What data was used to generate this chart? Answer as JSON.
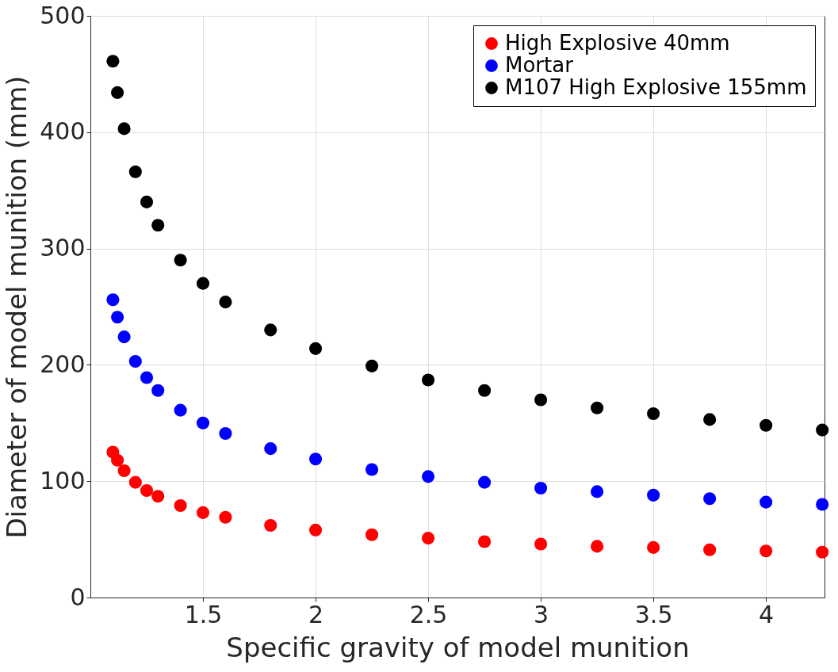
{
  "chart_data": {
    "type": "scatter",
    "xlabel": "Specific gravity of model munition",
    "ylabel": "Diameter of model munition (mm)",
    "x": [
      1.1,
      1.12,
      1.15,
      1.2,
      1.25,
      1.3,
      1.4,
      1.5,
      1.6,
      1.8,
      2,
      2.25,
      2.5,
      2.75,
      3,
      3.25,
      3.5,
      3.75,
      4,
      4.25
    ],
    "series": [
      {
        "name": "High Explosive 40mm",
        "color": "#ff0000",
        "values": [
          125,
          118,
          109,
          99,
          92,
          87,
          79,
          73,
          69,
          62,
          58,
          54,
          51,
          48,
          46,
          44,
          43,
          41,
          40,
          39
        ]
      },
      {
        "name": "Mortar",
        "color": "#0000ff",
        "values": [
          256,
          241,
          224,
          203,
          189,
          178,
          161,
          150,
          141,
          128,
          119,
          110,
          104,
          99,
          94,
          91,
          88,
          85,
          82,
          80
        ]
      },
      {
        "name": "M107 High Explosive 155mm",
        "color": "#000000",
        "values": [
          461,
          434,
          403,
          366,
          340,
          320,
          290,
          270,
          254,
          230,
          214,
          199,
          187,
          178,
          170,
          163,
          158,
          153,
          148,
          144
        ]
      }
    ],
    "xlim": [
      1,
      4.26
    ],
    "xticks": [
      1.5,
      2,
      2.5,
      3,
      3.5,
      4
    ],
    "ylim": [
      0,
      500
    ],
    "yticks": [
      0,
      100,
      200,
      300,
      400,
      500
    ],
    "grid": true,
    "legend": "top right",
    "marker": "circle"
  }
}
